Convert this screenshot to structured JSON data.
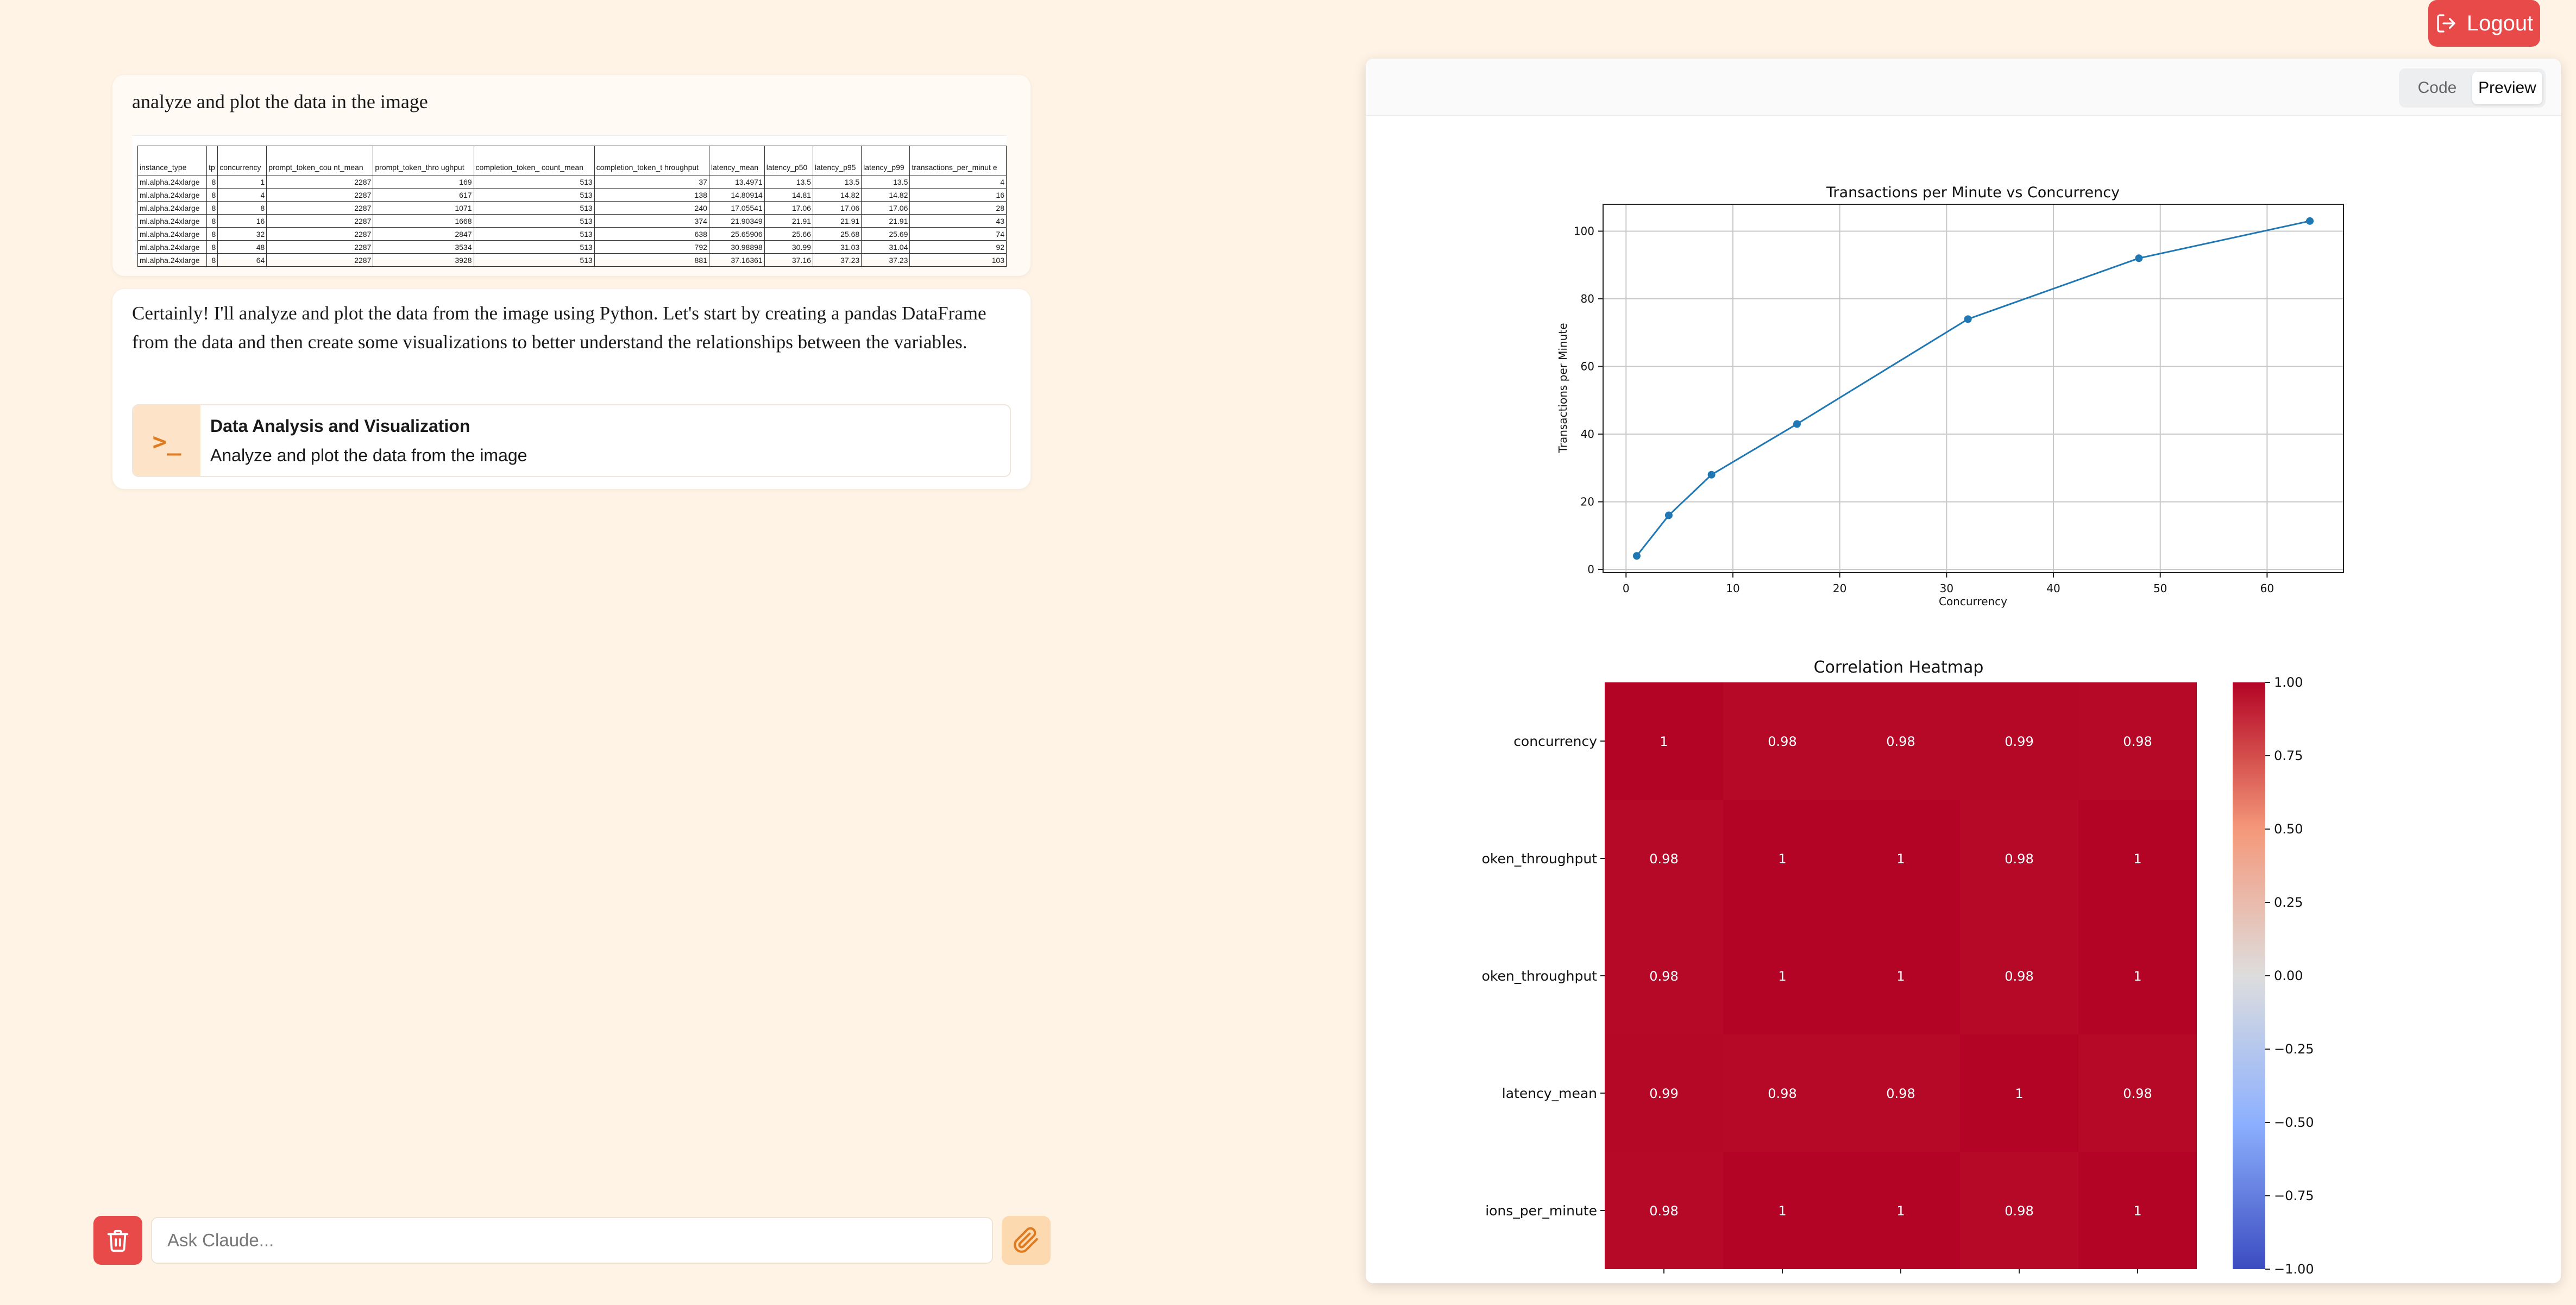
{
  "header": {
    "logout_label": "Logout"
  },
  "conversation": {
    "user_prompt": "analyze and plot the data in the image",
    "image_table": {
      "headers": [
        "instance_type",
        "tp",
        "concurrency",
        "prompt_token_cou nt_mean",
        "prompt_token_thro ughput",
        "completion_token_ count_mean",
        "completion_token_t hroughput",
        "latency_mean",
        "latency_p50",
        "latency_p95",
        "latency_p99",
        "transactions_per_minut e"
      ],
      "rows": [
        [
          "ml.alpha.24xlarge",
          "8",
          "1",
          "2287",
          "169",
          "513",
          "37",
          "13.4971",
          "13.5",
          "13.5",
          "13.5",
          "4"
        ],
        [
          "ml.alpha.24xlarge",
          "8",
          "4",
          "2287",
          "617",
          "513",
          "138",
          "14.80914",
          "14.81",
          "14.82",
          "14.82",
          "16"
        ],
        [
          "ml.alpha.24xlarge",
          "8",
          "8",
          "2287",
          "1071",
          "513",
          "240",
          "17.05541",
          "17.06",
          "17.06",
          "17.06",
          "28"
        ],
        [
          "ml.alpha.24xlarge",
          "8",
          "16",
          "2287",
          "1668",
          "513",
          "374",
          "21.90349",
          "21.91",
          "21.91",
          "21.91",
          "43"
        ],
        [
          "ml.alpha.24xlarge",
          "8",
          "32",
          "2287",
          "2847",
          "513",
          "638",
          "25.65906",
          "25.66",
          "25.68",
          "25.69",
          "74"
        ],
        [
          "ml.alpha.24xlarge",
          "8",
          "48",
          "2287",
          "3534",
          "513",
          "792",
          "30.98898",
          "30.99",
          "31.03",
          "31.04",
          "92"
        ],
        [
          "ml.alpha.24xlarge",
          "8",
          "64",
          "2287",
          "3928",
          "513",
          "881",
          "37.16361",
          "37.16",
          "37.23",
          "37.23",
          "103"
        ]
      ]
    },
    "assistant_text": "Certainly! I'll analyze and plot the data from the image using Python. Let's start by creating a pandas DataFrame from the data and then create some visualizations to better understand the relationships between the variables.",
    "artifact_card": {
      "icon": "terminal-prompt-icon",
      "icon_glyph": ">_",
      "title": "Data Analysis and Visualization",
      "description": "Analyze and plot the data from the image"
    }
  },
  "input": {
    "placeholder": "Ask Claude..."
  },
  "panel": {
    "tab_code": "Code",
    "tab_preview": "Preview",
    "active_tab": "Preview"
  },
  "colors": {
    "accent": "#e84a4a",
    "line": "#1f77b4",
    "heat_high": "#b40426"
  },
  "chart_data": [
    {
      "type": "line",
      "title": "Transactions per Minute vs Concurrency",
      "xlabel": "Concurrency",
      "ylabel": "Transactions per Minute",
      "x": [
        1,
        4,
        8,
        16,
        32,
        48,
        64
      ],
      "y": [
        4,
        16,
        28,
        43,
        74,
        92,
        103
      ],
      "xticks": [
        0,
        10,
        20,
        30,
        40,
        50,
        60
      ],
      "yticks": [
        0,
        20,
        40,
        60,
        80,
        100
      ],
      "xlim": [
        -2.15,
        67.15
      ],
      "ylim": [
        -0.95,
        107.95
      ],
      "grid": true
    },
    {
      "type": "heatmap",
      "title": "Correlation Heatmap",
      "row_labels": [
        "concurrency",
        "oken_throughput",
        "oken_throughput",
        "latency_mean",
        "ions_per_minute"
      ],
      "values": [
        [
          1,
          0.98,
          0.98,
          0.99,
          0.98
        ],
        [
          0.98,
          1,
          1,
          0.98,
          1
        ],
        [
          0.98,
          1,
          1,
          0.98,
          1
        ],
        [
          0.99,
          0.98,
          0.98,
          1,
          0.98
        ],
        [
          0.98,
          1,
          1,
          0.98,
          1
        ]
      ],
      "colorbar_ticks": [
        "1.00",
        "0.75",
        "0.50",
        "0.25",
        "0.00",
        "−0.25",
        "−0.50",
        "−0.75",
        "−1.00"
      ],
      "colorbar_range": [
        -1,
        1
      ],
      "colormap": "coolwarm"
    }
  ]
}
